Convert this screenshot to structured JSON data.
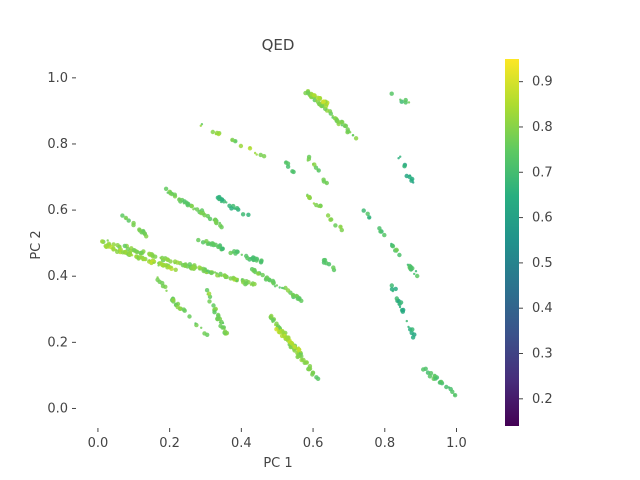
{
  "chart_data": {
    "type": "scatter",
    "title": "QED",
    "xlabel": "PC 1",
    "ylabel": "PC 2",
    "xlim": [
      -0.05,
      1.06
    ],
    "ylim": [
      -0.05,
      1.06
    ],
    "x_ticks": [
      "0.0",
      "0.2",
      "0.4",
      "0.6",
      "0.8",
      "1.0"
    ],
    "y_ticks": [
      "0.0",
      "0.2",
      "0.4",
      "0.6",
      "0.8",
      "1.0"
    ],
    "grid": false,
    "colorscale": "viridis",
    "color_range": [
      0.14,
      0.95
    ],
    "colorbar_ticks": [
      "0.2",
      "0.3",
      "0.4",
      "0.5",
      "0.6",
      "0.7",
      "0.8",
      "0.9"
    ],
    "clusters": [
      {
        "x0": 0.0,
        "y0": 0.51,
        "x1": 0.45,
        "y1": 0.37,
        "n": 110,
        "c": 0.79
      },
      {
        "x0": 0.02,
        "y0": 0.49,
        "x1": 0.22,
        "y1": 0.42,
        "n": 60,
        "c": 0.82
      },
      {
        "x0": 0.19,
        "y0": 0.66,
        "x1": 0.35,
        "y1": 0.55,
        "n": 45,
        "c": 0.76
      },
      {
        "x0": 0.28,
        "y0": 0.51,
        "x1": 0.46,
        "y1": 0.44,
        "n": 40,
        "c": 0.73
      },
      {
        "x0": 0.33,
        "y0": 0.64,
        "x1": 0.42,
        "y1": 0.58,
        "n": 18,
        "c": 0.68
      },
      {
        "x0": 0.43,
        "y0": 0.42,
        "x1": 0.58,
        "y1": 0.32,
        "n": 40,
        "c": 0.76
      },
      {
        "x0": 0.48,
        "y0": 0.28,
        "x1": 0.61,
        "y1": 0.09,
        "n": 70,
        "c": 0.79
      },
      {
        "x0": 0.5,
        "y0": 0.24,
        "x1": 0.57,
        "y1": 0.17,
        "n": 25,
        "c": 0.86
      },
      {
        "x0": 0.3,
        "y0": 0.36,
        "x1": 0.36,
        "y1": 0.22,
        "n": 30,
        "c": 0.77
      },
      {
        "x0": 0.16,
        "y0": 0.4,
        "x1": 0.23,
        "y1": 0.3,
        "n": 18,
        "c": 0.78
      },
      {
        "x0": 0.58,
        "y0": 0.96,
        "x1": 0.72,
        "y1": 0.82,
        "n": 55,
        "c": 0.78
      },
      {
        "x0": 0.6,
        "y0": 0.95,
        "x1": 0.64,
        "y1": 0.92,
        "n": 15,
        "c": 0.84
      },
      {
        "x0": 0.28,
        "y0": 0.86,
        "x1": 0.47,
        "y1": 0.76,
        "n": 18,
        "c": 0.8
      },
      {
        "x0": 0.57,
        "y0": 0.66,
        "x1": 0.68,
        "y1": 0.54,
        "n": 18,
        "c": 0.8
      },
      {
        "x0": 0.58,
        "y0": 0.77,
        "x1": 0.64,
        "y1": 0.68,
        "n": 12,
        "c": 0.77
      },
      {
        "x0": 0.62,
        "y0": 0.46,
        "x1": 0.67,
        "y1": 0.4,
        "n": 8,
        "c": 0.74
      },
      {
        "x0": 0.84,
        "y0": 0.76,
        "x1": 0.88,
        "y1": 0.68,
        "n": 10,
        "c": 0.64
      },
      {
        "x0": 0.82,
        "y0": 0.5,
        "x1": 0.9,
        "y1": 0.39,
        "n": 20,
        "c": 0.71
      },
      {
        "x0": 0.82,
        "y0": 0.37,
        "x1": 0.89,
        "y1": 0.2,
        "n": 22,
        "c": 0.66
      },
      {
        "x0": 0.9,
        "y0": 0.13,
        "x1": 1.0,
        "y1": 0.04,
        "n": 20,
        "c": 0.73
      },
      {
        "x0": 0.82,
        "y0": 0.95,
        "x1": 0.87,
        "y1": 0.92,
        "n": 6,
        "c": 0.74
      },
      {
        "x0": 0.05,
        "y0": 0.6,
        "x1": 0.14,
        "y1": 0.52,
        "n": 14,
        "c": 0.77
      },
      {
        "x0": 0.24,
        "y0": 0.3,
        "x1": 0.3,
        "y1": 0.22,
        "n": 8,
        "c": 0.75
      },
      {
        "x0": 0.52,
        "y0": 0.75,
        "x1": 0.55,
        "y1": 0.71,
        "n": 6,
        "c": 0.72
      },
      {
        "x0": 0.74,
        "y0": 0.6,
        "x1": 0.8,
        "y1": 0.52,
        "n": 8,
        "c": 0.7
      }
    ]
  }
}
